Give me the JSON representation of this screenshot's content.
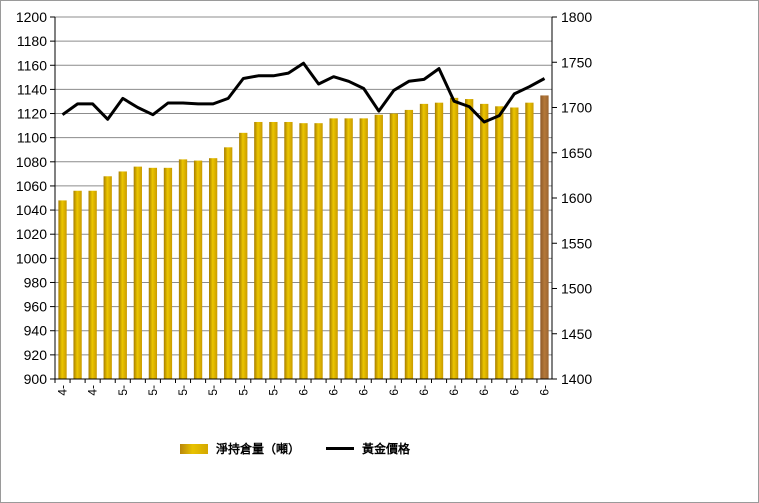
{
  "chart_data": {
    "type": "bar+line",
    "x_tick_labels": [
      "4-",
      "4-",
      "4-",
      "5-",
      "5-",
      "5-",
      "5-",
      "5-",
      "5-",
      "5-",
      "5-",
      "5-",
      "5-",
      "5-",
      "5-",
      "5-",
      "6-",
      "6-",
      "6-",
      "6-",
      "6-",
      "6-",
      "6-",
      "6-",
      "6-",
      "6-",
      "6-",
      "6-",
      "6-",
      "6-",
      "6-",
      "6-",
      "6-"
    ],
    "series": [
      {
        "name": "淨持倉量（噸）",
        "type": "bar",
        "axis": "left",
        "values": [
          1048,
          1056,
          1056,
          1068,
          1072,
          1076,
          1075,
          1075,
          1082,
          1081,
          1083,
          1092,
          1104,
          1113,
          1113,
          1113,
          1112,
          1112,
          1116,
          1116,
          1116,
          1119,
          1120,
          1123,
          1128,
          1129,
          1133,
          1132,
          1128,
          1126,
          1125,
          1129,
          1135
        ],
        "color": "#d4a800",
        "last_bar_color": "#b5793a"
      },
      {
        "name": "黃金價格",
        "type": "line",
        "axis": "right",
        "values": [
          1692,
          1704,
          1704,
          1687,
          1710,
          1700,
          1692,
          1705,
          1705,
          1704,
          1704,
          1710,
          1732,
          1735,
          1735,
          1738,
          1749,
          1726,
          1734,
          1729,
          1721,
          1696,
          1719,
          1729,
          1731,
          1743,
          1707,
          1701,
          1684,
          1691,
          1715,
          1723,
          1732
        ],
        "color": "#000000"
      }
    ],
    "y_left": {
      "min": 900,
      "max": 1200,
      "step": 20
    },
    "y_right": {
      "min": 1400,
      "max": 1800,
      "step": 50
    },
    "gridlines": true,
    "legend_position": "bottom"
  }
}
